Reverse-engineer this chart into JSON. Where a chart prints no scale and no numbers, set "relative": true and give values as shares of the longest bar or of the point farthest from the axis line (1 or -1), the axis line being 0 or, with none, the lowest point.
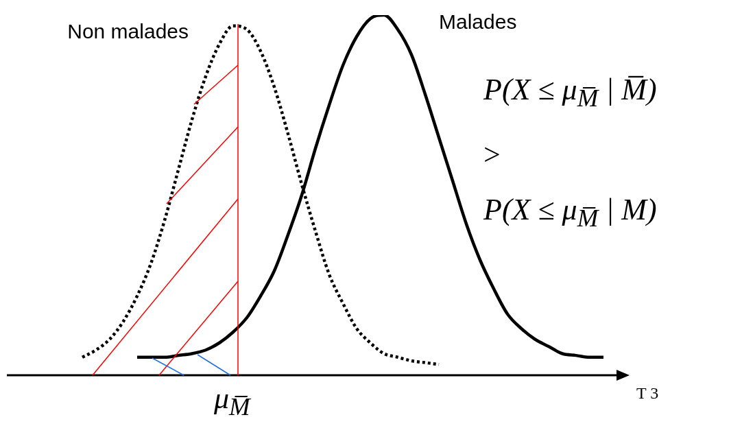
{
  "chart_data": {
    "type": "line",
    "relative": true,
    "xlabel": "T 3",
    "legend": false,
    "marker": "none",
    "categories": [
      null,
      null,
      null,
      null,
      null,
      null,
      null,
      null,
      null,
      null,
      null,
      null,
      null,
      null,
      null,
      null,
      null,
      null,
      null,
      null,
      null,
      null,
      null,
      null,
      null,
      null,
      null,
      null,
      null,
      null,
      null,
      null,
      null,
      null,
      null,
      null,
      null,
      null,
      null
    ],
    "series": [
      {
        "name": "Non malades",
        "color": "#000000",
        "line_style": "dotted",
        "values": [
          0.05,
          0.07,
          0.1,
          0.15,
          0.22,
          0.31,
          0.43,
          0.57,
          0.71,
          0.83,
          0.92,
          0.97,
          0.96,
          0.9,
          0.8,
          0.67,
          0.53,
          0.4,
          0.28,
          0.2,
          0.13,
          0.09,
          0.06,
          0.05,
          0.04,
          0.035,
          0.03,
          null,
          null,
          null,
          null,
          null,
          null,
          null,
          null,
          null,
          null,
          null,
          null
        ]
      },
      {
        "name": "Malades",
        "color": "#000000",
        "line_style": "solid",
        "values": [
          null,
          null,
          null,
          null,
          0.05,
          0.05,
          0.05,
          0.055,
          0.06,
          0.07,
          0.09,
          0.12,
          0.16,
          0.22,
          0.29,
          0.39,
          0.5,
          0.63,
          0.75,
          0.86,
          0.94,
          0.99,
          1,
          0.96,
          0.89,
          0.78,
          0.66,
          0.54,
          0.42,
          0.32,
          0.24,
          0.17,
          0.13,
          0.1,
          0.08,
          0.06,
          0.055,
          0.05,
          0.05
        ]
      }
    ],
    "annotations": [
      "μ$_{M̅}$",
      "P(X ≤ μ$_{M̅}$ | M̅)",
      ">",
      "P(X ≤ μ$_{M̅}$ | M)"
    ]
  }
}
